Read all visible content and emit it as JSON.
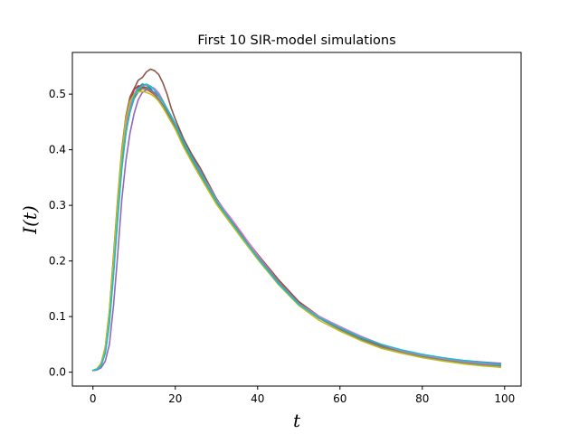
{
  "chart_data": {
    "type": "line",
    "title": "First 10 SIR-model simulations",
    "xlabel": "t",
    "ylabel": "I(t)",
    "xlim": [
      -5,
      104
    ],
    "ylim": [
      -0.025,
      0.575
    ],
    "xticks": [
      0,
      20,
      40,
      60,
      80,
      100
    ],
    "yticks": [
      0.0,
      0.1,
      0.2,
      0.3,
      0.4,
      0.5
    ],
    "xtick_labels": [
      "0",
      "20",
      "40",
      "60",
      "80",
      "100"
    ],
    "ytick_labels": [
      "0.0",
      "0.1",
      "0.2",
      "0.3",
      "0.4",
      "0.5"
    ],
    "grid": false,
    "legend": "none",
    "colors": [
      "#1f77b4",
      "#ff7f0e",
      "#2ca02c",
      "#d62728",
      "#9467bd",
      "#8c564b",
      "#e377c2",
      "#7f7f7f",
      "#bcbd22",
      "#17becf"
    ],
    "x": [
      0,
      1,
      2,
      3,
      4,
      5,
      6,
      7,
      8,
      9,
      10,
      11,
      12,
      13,
      14,
      15,
      16,
      17,
      18,
      19,
      20,
      22,
      24,
      26,
      28,
      30,
      33,
      36,
      40,
      45,
      50,
      55,
      60,
      65,
      70,
      75,
      80,
      85,
      90,
      95,
      99
    ],
    "series": [
      {
        "values": [
          0.003,
          0.006,
          0.015,
          0.04,
          0.1,
          0.19,
          0.29,
          0.38,
          0.44,
          0.475,
          0.5,
          0.512,
          0.518,
          0.516,
          0.51,
          0.5,
          0.49,
          0.48,
          0.468,
          0.455,
          0.44,
          0.41,
          0.385,
          0.36,
          0.335,
          0.31,
          0.28,
          0.25,
          0.21,
          0.165,
          0.125,
          0.1,
          0.08,
          0.062,
          0.048,
          0.038,
          0.03,
          0.024,
          0.019,
          0.015,
          0.012
        ]
      },
      {
        "values": [
          0.003,
          0.005,
          0.012,
          0.035,
          0.09,
          0.18,
          0.28,
          0.37,
          0.43,
          0.47,
          0.495,
          0.505,
          0.51,
          0.508,
          0.504,
          0.498,
          0.49,
          0.48,
          0.468,
          0.455,
          0.442,
          0.412,
          0.384,
          0.358,
          0.332,
          0.306,
          0.275,
          0.245,
          0.205,
          0.16,
          0.122,
          0.098,
          0.078,
          0.06,
          0.046,
          0.036,
          0.028,
          0.022,
          0.017,
          0.013,
          0.011
        ]
      },
      {
        "values": [
          0.003,
          0.006,
          0.014,
          0.038,
          0.095,
          0.185,
          0.285,
          0.375,
          0.435,
          0.47,
          0.495,
          0.508,
          0.513,
          0.512,
          0.507,
          0.5,
          0.49,
          0.479,
          0.466,
          0.452,
          0.438,
          0.408,
          0.38,
          0.355,
          0.33,
          0.305,
          0.275,
          0.245,
          0.208,
          0.165,
          0.123,
          0.097,
          0.077,
          0.059,
          0.045,
          0.035,
          0.027,
          0.021,
          0.016,
          0.012,
          0.01
        ]
      },
      {
        "values": [
          0.003,
          0.006,
          0.015,
          0.042,
          0.105,
          0.2,
          0.3,
          0.39,
          0.45,
          0.487,
          0.508,
          0.515,
          0.513,
          0.51,
          0.505,
          0.5,
          0.49,
          0.48,
          0.468,
          0.455,
          0.442,
          0.414,
          0.387,
          0.362,
          0.336,
          0.31,
          0.278,
          0.248,
          0.21,
          0.163,
          0.123,
          0.097,
          0.077,
          0.06,
          0.045,
          0.035,
          0.027,
          0.021,
          0.016,
          0.012,
          0.009
        ]
      },
      {
        "values": [
          0.003,
          0.004,
          0.008,
          0.02,
          0.05,
          0.12,
          0.21,
          0.31,
          0.38,
          0.43,
          0.465,
          0.49,
          0.503,
          0.508,
          0.507,
          0.503,
          0.496,
          0.486,
          0.474,
          0.461,
          0.447,
          0.418,
          0.39,
          0.362,
          0.336,
          0.31,
          0.279,
          0.249,
          0.21,
          0.165,
          0.125,
          0.1,
          0.082,
          0.064,
          0.05,
          0.039,
          0.031,
          0.025,
          0.021,
          0.018,
          0.016
        ]
      },
      {
        "values": [
          0.003,
          0.006,
          0.016,
          0.045,
          0.11,
          0.21,
          0.31,
          0.4,
          0.46,
          0.495,
          0.51,
          0.525,
          0.53,
          0.54,
          0.545,
          0.542,
          0.535,
          0.52,
          0.5,
          0.475,
          0.455,
          0.42,
          0.392,
          0.368,
          0.34,
          0.312,
          0.28,
          0.25,
          0.212,
          0.167,
          0.127,
          0.1,
          0.08,
          0.062,
          0.048,
          0.038,
          0.03,
          0.024,
          0.019,
          0.015,
          0.012
        ]
      },
      {
        "values": [
          0.003,
          0.006,
          0.014,
          0.04,
          0.1,
          0.19,
          0.29,
          0.38,
          0.44,
          0.478,
          0.5,
          0.51,
          0.515,
          0.516,
          0.514,
          0.51,
          0.502,
          0.488,
          0.472,
          0.458,
          0.444,
          0.414,
          0.386,
          0.36,
          0.336,
          0.31,
          0.282,
          0.252,
          0.21,
          0.163,
          0.123,
          0.1,
          0.082,
          0.065,
          0.05,
          0.038,
          0.03,
          0.024,
          0.019,
          0.015,
          0.012
        ]
      },
      {
        "values": [
          0.003,
          0.005,
          0.013,
          0.036,
          0.092,
          0.182,
          0.282,
          0.372,
          0.432,
          0.468,
          0.492,
          0.504,
          0.51,
          0.51,
          0.506,
          0.5,
          0.491,
          0.481,
          0.469,
          0.456,
          0.443,
          0.412,
          0.384,
          0.357,
          0.332,
          0.307,
          0.276,
          0.246,
          0.207,
          0.162,
          0.122,
          0.097,
          0.077,
          0.06,
          0.046,
          0.036,
          0.028,
          0.022,
          0.017,
          0.013,
          0.011
        ]
      },
      {
        "values": [
          0.003,
          0.006,
          0.016,
          0.044,
          0.108,
          0.205,
          0.305,
          0.395,
          0.455,
          0.487,
          0.5,
          0.504,
          0.505,
          0.503,
          0.5,
          0.495,
          0.487,
          0.476,
          0.463,
          0.45,
          0.437,
          0.405,
          0.378,
          0.352,
          0.327,
          0.302,
          0.272,
          0.242,
          0.203,
          0.158,
          0.12,
          0.093,
          0.074,
          0.057,
          0.043,
          0.034,
          0.026,
          0.02,
          0.015,
          0.011,
          0.009
        ]
      },
      {
        "values": [
          0.003,
          0.005,
          0.012,
          0.034,
          0.088,
          0.175,
          0.275,
          0.365,
          0.43,
          0.47,
          0.497,
          0.51,
          0.516,
          0.518,
          0.514,
          0.507,
          0.498,
          0.487,
          0.474,
          0.46,
          0.446,
          0.414,
          0.386,
          0.36,
          0.334,
          0.308,
          0.277,
          0.246,
          0.206,
          0.16,
          0.122,
          0.098,
          0.08,
          0.063,
          0.05,
          0.04,
          0.032,
          0.026,
          0.021,
          0.017,
          0.014
        ]
      }
    ]
  }
}
